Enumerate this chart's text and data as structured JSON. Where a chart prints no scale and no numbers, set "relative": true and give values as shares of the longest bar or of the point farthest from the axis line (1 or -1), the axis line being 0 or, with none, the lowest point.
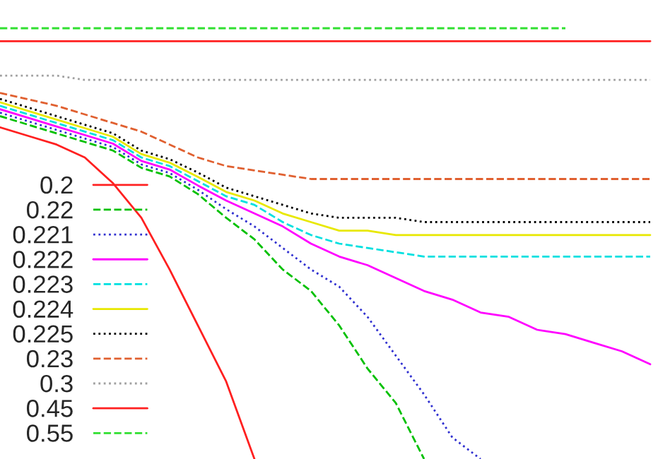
{
  "chart_data": {
    "type": "line",
    "relative": true,
    "legend": "bottom left",
    "grid": false,
    "categories": [
      null,
      null,
      null,
      null,
      null,
      null,
      null,
      null,
      null,
      null,
      null,
      null,
      null,
      null,
      null,
      null,
      null,
      null,
      null,
      null,
      null,
      null,
      null,
      null
    ],
    "series": [
      {
        "name": "0.2",
        "color": "#ff2020",
        "line_style": "solid",
        "values": [
          0.77,
          0.75,
          0.73,
          0.7,
          0.64,
          0.56,
          0.44,
          0.31,
          0.18,
          0.0,
          null,
          null,
          null,
          null,
          null,
          null,
          null,
          null,
          null,
          null,
          null,
          null,
          null,
          null
        ]
      },
      {
        "name": "0.22",
        "color": "#00c000",
        "line_style": "dashed",
        "values": [
          0.796,
          0.776,
          0.756,
          0.736,
          0.716,
          0.676,
          0.656,
          0.615,
          0.56,
          0.51,
          0.44,
          0.39,
          0.31,
          0.21,
          0.13,
          0.0,
          null,
          null,
          null,
          null,
          null,
          null,
          null,
          null
        ]
      },
      {
        "name": "0.221",
        "color": "#3030d0",
        "line_style": "dotted",
        "values": [
          0.804,
          0.784,
          0.764,
          0.744,
          0.724,
          0.684,
          0.664,
          0.625,
          0.58,
          0.54,
          0.49,
          0.44,
          0.4,
          0.33,
          0.24,
          0.15,
          0.05,
          0.0,
          null,
          null,
          null,
          null,
          null,
          null
        ]
      },
      {
        "name": "0.222",
        "color": "#ff00ff",
        "line_style": "solid",
        "values": [
          0.812,
          0.792,
          0.772,
          0.752,
          0.732,
          0.692,
          0.672,
          0.635,
          0.6,
          0.57,
          0.54,
          0.5,
          0.47,
          0.45,
          0.42,
          0.39,
          0.37,
          0.34,
          0.33,
          0.3,
          0.29,
          0.27,
          0.25,
          0.22
        ]
      },
      {
        "name": "0.223",
        "color": "#00e0e0",
        "line_style": "dashed",
        "values": [
          0.82,
          0.8,
          0.78,
          0.76,
          0.74,
          0.7,
          0.68,
          0.645,
          0.61,
          0.59,
          0.55,
          0.52,
          0.5,
          0.49,
          0.48,
          0.47,
          0.47,
          0.47,
          0.47,
          0.47,
          0.47,
          0.47,
          0.47,
          0.47
        ]
      },
      {
        "name": "0.224",
        "color": "#e8e800",
        "line_style": "solid",
        "values": [
          0.828,
          0.808,
          0.788,
          0.768,
          0.748,
          0.708,
          0.688,
          0.655,
          0.62,
          0.6,
          0.57,
          0.55,
          0.53,
          0.53,
          0.52,
          0.52,
          0.52,
          0.52,
          0.52,
          0.52,
          0.52,
          0.52,
          0.52,
          0.52
        ]
      },
      {
        "name": "0.225",
        "color": "#000000",
        "line_style": "dotted",
        "values": [
          0.836,
          0.816,
          0.796,
          0.776,
          0.756,
          0.716,
          0.696,
          0.665,
          0.63,
          0.61,
          0.59,
          0.57,
          0.56,
          0.56,
          0.56,
          0.55,
          0.55,
          0.55,
          0.55,
          0.55,
          0.55,
          0.55,
          0.55,
          0.55
        ]
      },
      {
        "name": "0.23",
        "color": "#e06030",
        "line_style": "dashed",
        "values": [
          0.85,
          0.835,
          0.82,
          0.8,
          0.78,
          0.76,
          0.73,
          0.7,
          0.68,
          0.67,
          0.66,
          0.65,
          0.65,
          0.65,
          0.65,
          0.65,
          0.65,
          0.65,
          0.65,
          0.65,
          0.65,
          0.65,
          0.65,
          0.65
        ]
      },
      {
        "name": "0.3",
        "color": "#a0a0a0",
        "line_style": "dotted",
        "values": [
          0.89,
          0.89,
          0.89,
          0.88,
          0.88,
          0.88,
          0.88,
          0.88,
          0.88,
          0.88,
          0.88,
          0.88,
          0.88,
          0.88,
          0.88,
          0.88,
          0.88,
          0.88,
          0.88,
          0.88,
          0.88,
          0.88,
          0.88,
          0.88
        ]
      },
      {
        "name": "0.45",
        "color": "#ff2020",
        "line_style": "solid",
        "values": [
          0.97,
          0.97,
          0.97,
          0.97,
          0.97,
          0.97,
          0.97,
          0.97,
          0.97,
          0.97,
          0.97,
          0.97,
          0.97,
          0.97,
          0.97,
          0.97,
          0.97,
          0.97,
          0.97,
          0.97,
          0.97,
          0.97,
          0.97,
          0.97
        ]
      },
      {
        "name": "0.55",
        "color": "#30e030",
        "line_style": "dashed",
        "values": [
          1.0,
          1.0,
          1.0,
          1.0,
          1.0,
          1.0,
          1.0,
          1.0,
          1.0,
          1.0,
          1.0,
          1.0,
          1.0,
          1.0,
          1.0,
          1.0,
          1.0,
          1.0,
          1.0,
          1.0,
          1.0,
          null,
          null,
          null
        ]
      }
    ]
  }
}
